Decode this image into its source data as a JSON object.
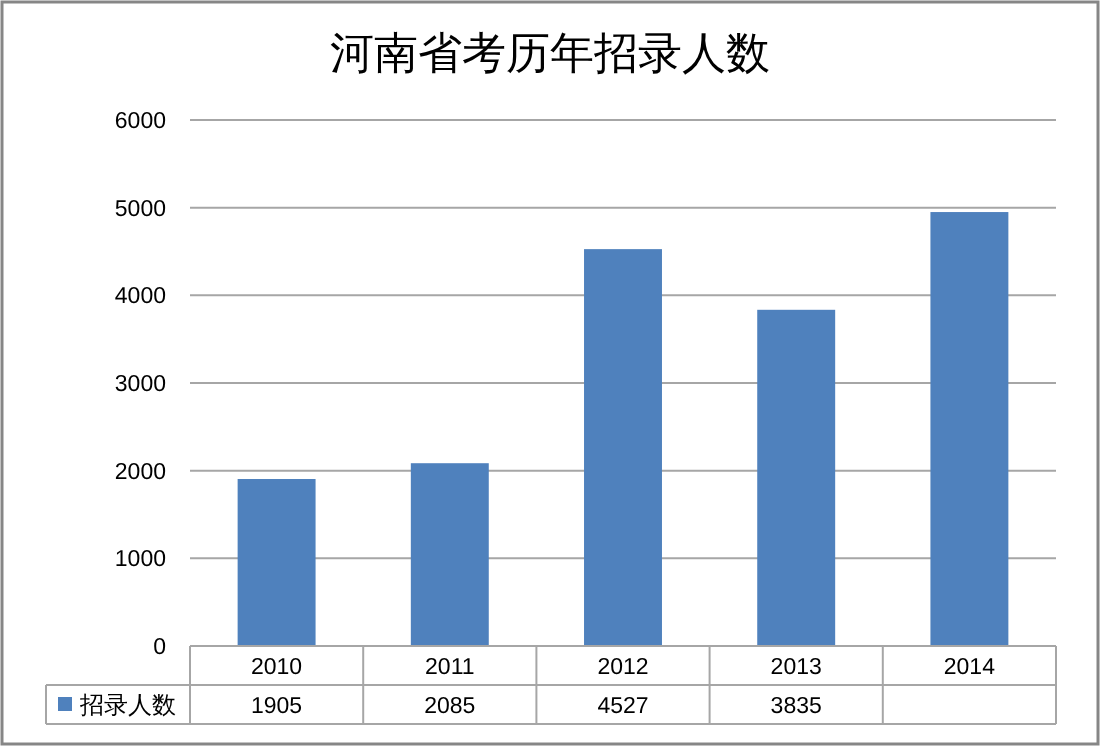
{
  "chart_data": {
    "type": "bar",
    "title": "河南省考历年招录人数",
    "categories": [
      "2010",
      "2011",
      "2012",
      "2013",
      "2014"
    ],
    "series": [
      {
        "name": "招录人数",
        "color": "#4f81bd",
        "values": [
          1905,
          2085,
          4527,
          3835,
          4950
        ],
        "value_labels": [
          "1905",
          "2085",
          "4527",
          "3835",
          null
        ]
      }
    ],
    "ylim": [
      0,
      6000
    ],
    "yticks": [
      0,
      1000,
      2000,
      3000,
      4000,
      5000,
      6000
    ],
    "grid": "y",
    "legend": "bottom"
  }
}
